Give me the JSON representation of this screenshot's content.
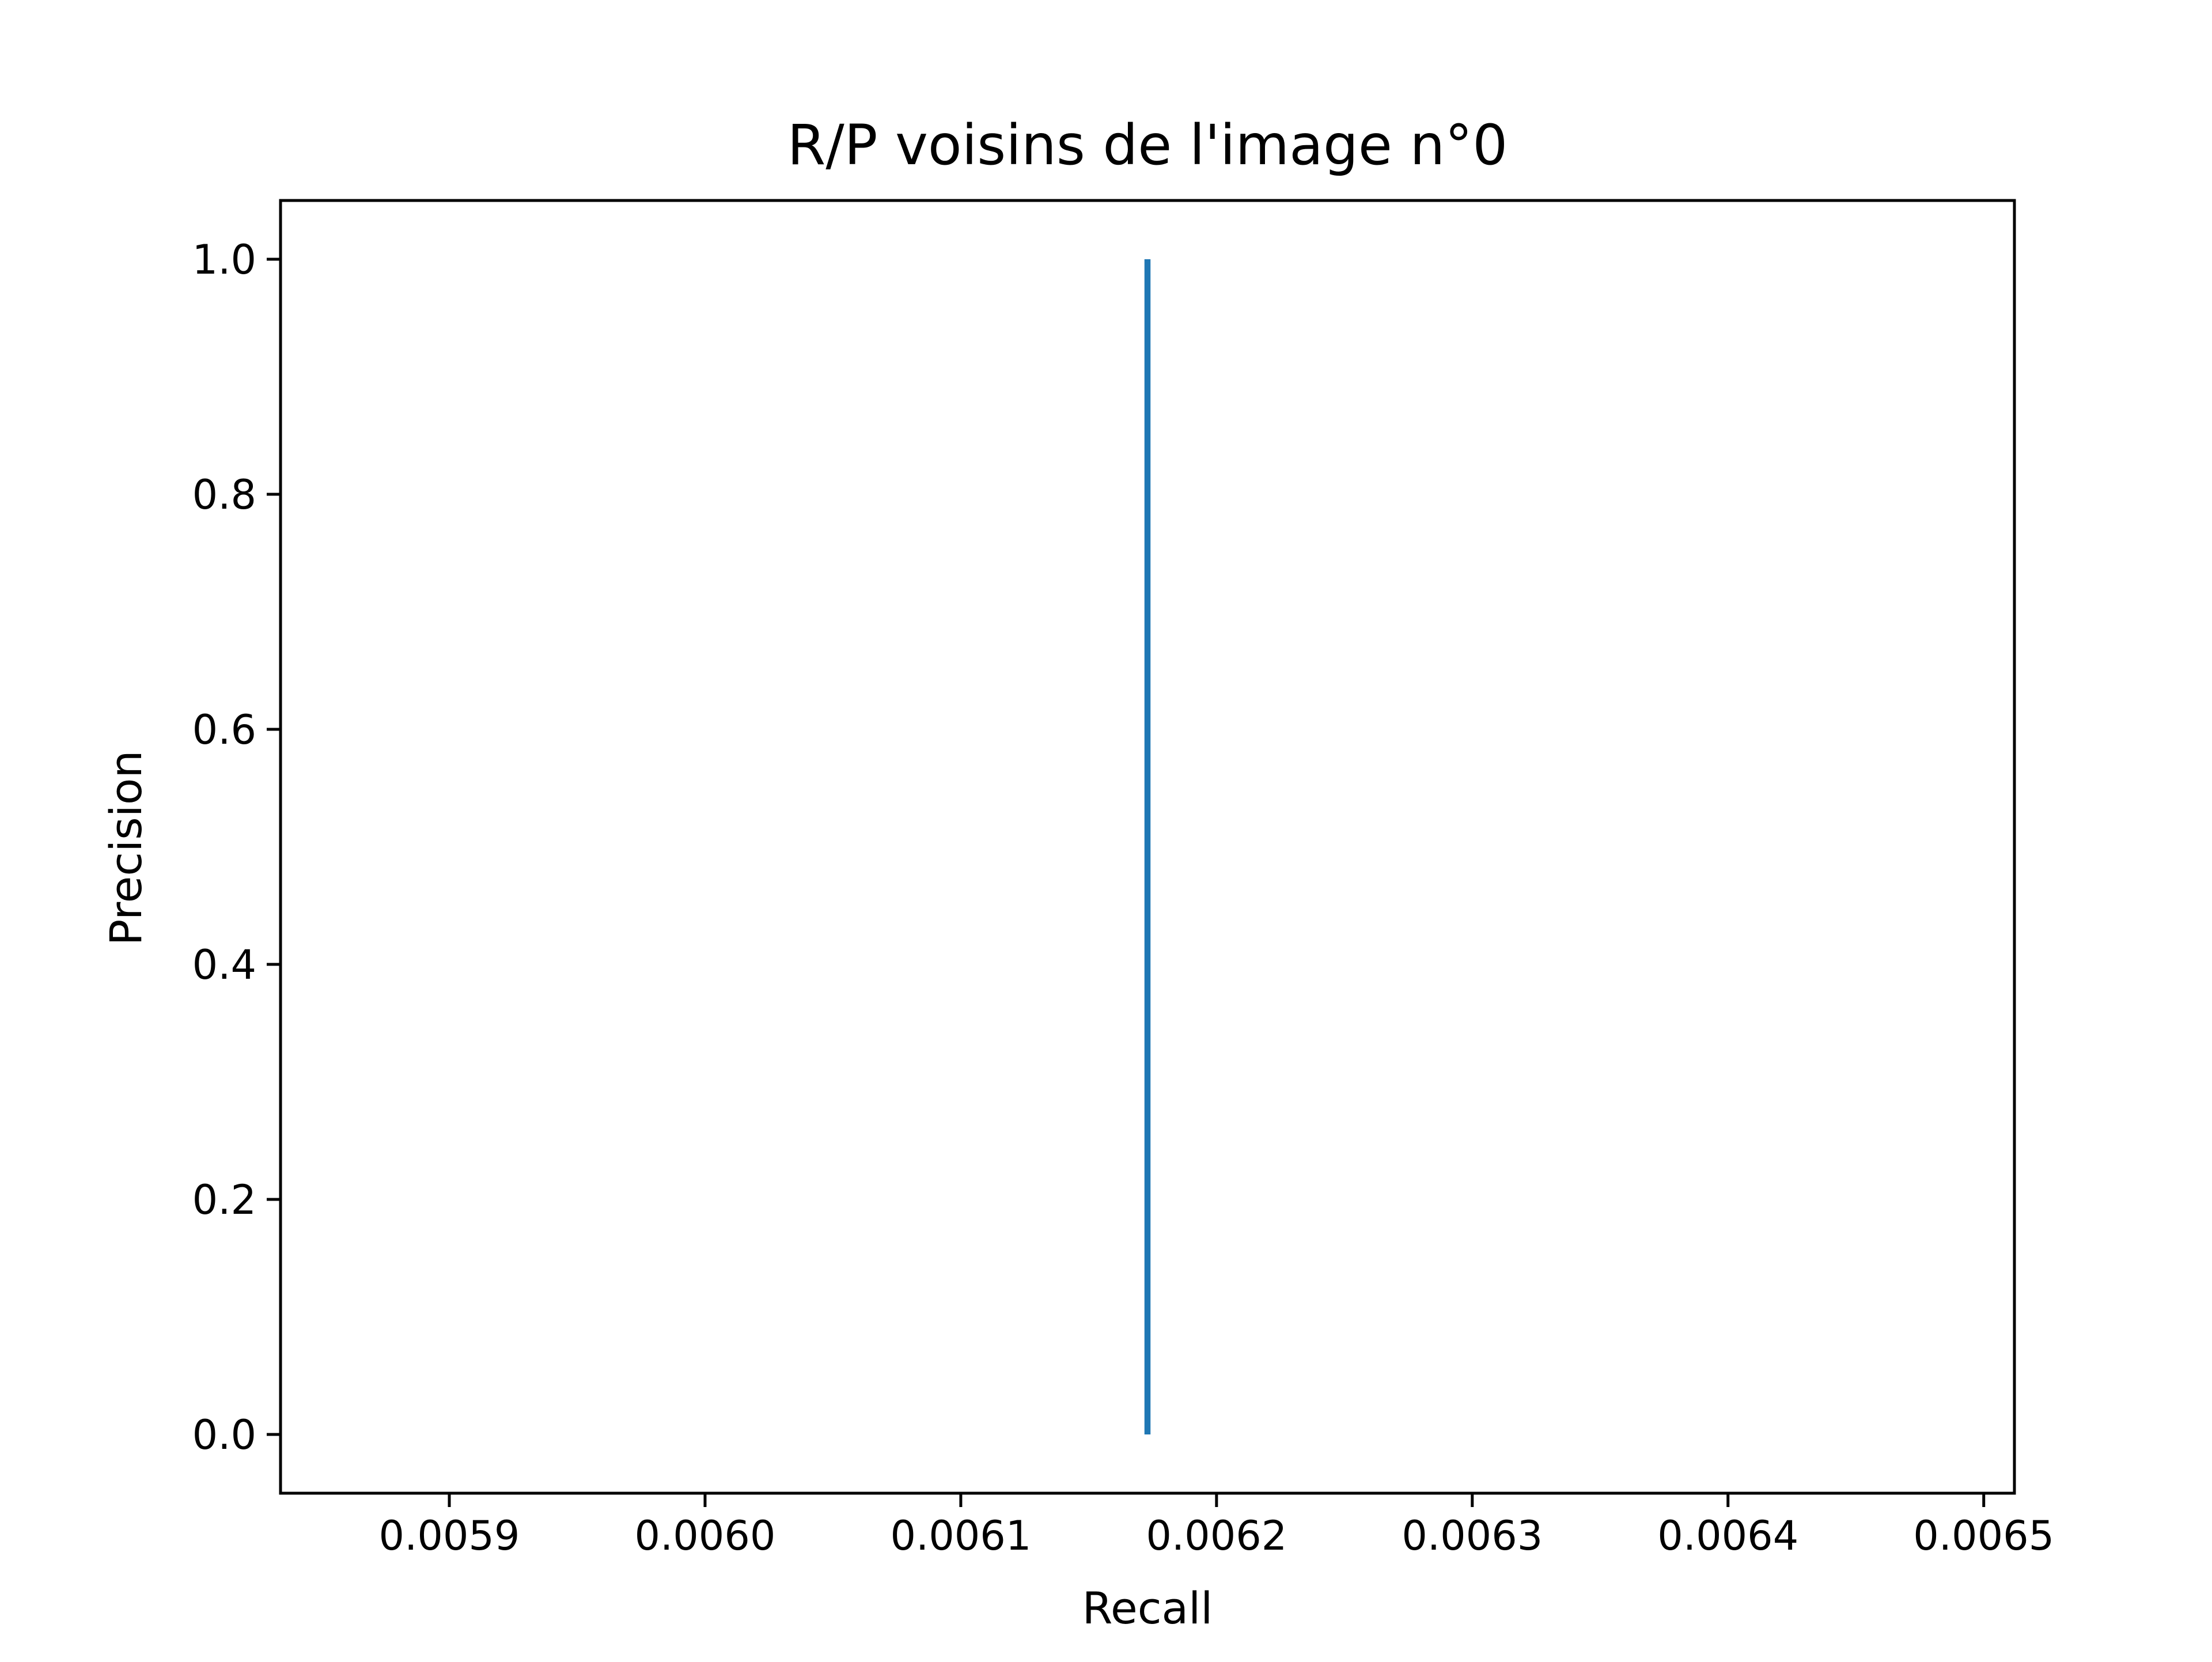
{
  "chart_data": {
    "type": "line",
    "title": "R/P voisins de l'image n°0",
    "xlabel": "Recall",
    "ylabel": "Precision",
    "xlim": [
      0.005834,
      0.006512
    ],
    "ylim": [
      -0.05,
      1.05
    ],
    "x_ticks": [
      0.0059,
      0.006,
      0.0061,
      0.0062,
      0.0063,
      0.0064,
      0.0065
    ],
    "x_tick_labels": [
      "0.0059",
      "0.0060",
      "0.0061",
      "0.0062",
      "0.0063",
      "0.0064",
      "0.0065"
    ],
    "y_ticks": [
      0.0,
      0.2,
      0.4,
      0.6,
      0.8,
      1.0
    ],
    "y_tick_labels": [
      "0.0",
      "0.2",
      "0.4",
      "0.6",
      "0.8",
      "1.0"
    ],
    "grid": false,
    "series": [
      {
        "color": "#1f77b4",
        "x": [
          0.006173,
          0.006173
        ],
        "y": [
          1.0,
          0.0
        ]
      }
    ]
  }
}
